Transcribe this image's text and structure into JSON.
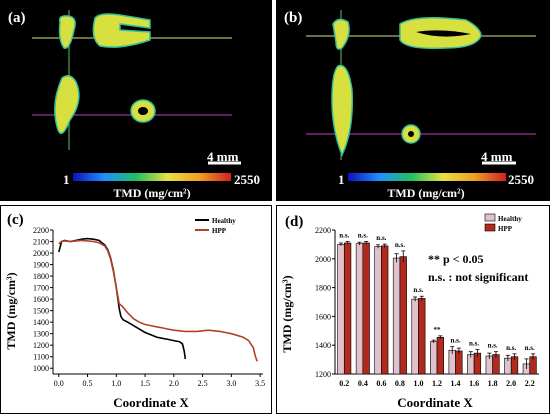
{
  "panels": {
    "a": {
      "label": "(a)",
      "scale_bar": "4 mm",
      "colorbar_min": "1",
      "colorbar_max": "2550",
      "colorbar_title": "TMD (mg/cm²)"
    },
    "b": {
      "label": "(b)",
      "scale_bar": "4 mm",
      "colorbar_min": "1",
      "colorbar_max": "2550",
      "colorbar_title": "TMD (mg/cm²)"
    }
  },
  "colors": {
    "healthy_c": "#000000",
    "hpp_c": "#b5402a",
    "healthy_bar": "#e0c2cc",
    "hpp_bar": "#b02a1e",
    "significant": "#000000"
  },
  "chart_data": [
    {
      "panel_label": "(c)",
      "type": "line",
      "xlabel": "Coordinate X",
      "ylabel": "TMD (mg/cm³)",
      "xlim": [
        -0.1,
        3.55
      ],
      "ylim": [
        950,
        2200
      ],
      "xticks": [
        "0.0",
        "0.5",
        "1.0",
        "1.5",
        "2.0",
        "2.5",
        "3.0",
        "3.5"
      ],
      "yticks": [
        "1000",
        "1100",
        "1200",
        "1300",
        "1400",
        "1500",
        "1600",
        "1700",
        "1800",
        "1900",
        "2000",
        "2100",
        "2200"
      ],
      "legend": "top-right",
      "series": [
        {
          "name": "Healthy",
          "color": "#000000",
          "points": [
            [
              0.0,
              2010
            ],
            [
              0.05,
              2100
            ],
            [
              0.1,
              2110
            ],
            [
              0.2,
              2100
            ],
            [
              0.3,
              2110
            ],
            [
              0.4,
              2120
            ],
            [
              0.5,
              2125
            ],
            [
              0.6,
              2120
            ],
            [
              0.7,
              2110
            ],
            [
              0.8,
              2070
            ],
            [
              0.85,
              2030
            ],
            [
              0.9,
              1960
            ],
            [
              0.95,
              1850
            ],
            [
              1.0,
              1700
            ],
            [
              1.05,
              1520
            ],
            [
              1.08,
              1450
            ],
            [
              1.12,
              1420
            ],
            [
              1.2,
              1400
            ],
            [
              1.3,
              1370
            ],
            [
              1.4,
              1340
            ],
            [
              1.5,
              1310
            ],
            [
              1.6,
              1290
            ],
            [
              1.7,
              1270
            ],
            [
              1.8,
              1260
            ],
            [
              1.9,
              1250
            ],
            [
              2.0,
              1240
            ],
            [
              2.1,
              1230
            ],
            [
              2.15,
              1210
            ],
            [
              2.18,
              1150
            ],
            [
              2.2,
              1080
            ]
          ]
        },
        {
          "name": "HPP",
          "color": "#b5402a",
          "points": [
            [
              0.0,
              2080
            ],
            [
              0.05,
              2100
            ],
            [
              0.1,
              2105
            ],
            [
              0.2,
              2100
            ],
            [
              0.3,
              2105
            ],
            [
              0.4,
              2110
            ],
            [
              0.5,
              2105
            ],
            [
              0.6,
              2100
            ],
            [
              0.7,
              2090
            ],
            [
              0.8,
              2060
            ],
            [
              0.85,
              2020
            ],
            [
              0.9,
              1950
            ],
            [
              0.95,
              1840
            ],
            [
              1.0,
              1700
            ],
            [
              1.05,
              1560
            ],
            [
              1.1,
              1540
            ],
            [
              1.2,
              1480
            ],
            [
              1.3,
              1430
            ],
            [
              1.4,
              1400
            ],
            [
              1.5,
              1380
            ],
            [
              1.6,
              1370
            ],
            [
              1.7,
              1360
            ],
            [
              1.8,
              1350
            ],
            [
              1.9,
              1340
            ],
            [
              2.0,
              1330
            ],
            [
              2.2,
              1320
            ],
            [
              2.4,
              1320
            ],
            [
              2.6,
              1330
            ],
            [
              2.8,
              1320
            ],
            [
              3.0,
              1300
            ],
            [
              3.2,
              1270
            ],
            [
              3.3,
              1240
            ],
            [
              3.38,
              1180
            ],
            [
              3.42,
              1100
            ],
            [
              3.45,
              1060
            ]
          ]
        }
      ]
    },
    {
      "panel_label": "(d)",
      "type": "bar",
      "xlabel": "Coordinate X",
      "ylabel": "TMD (mg/cm³)",
      "ylim": [
        1200,
        2200
      ],
      "yticks": [
        "1200",
        "1400",
        "1600",
        "1800",
        "2000",
        "2200"
      ],
      "categories": [
        "0.2",
        "0.4",
        "0.6",
        "0.8",
        "1.0",
        "1.2",
        "1.4",
        "1.6",
        "1.8",
        "2.0",
        "2.2"
      ],
      "legend": "top-right",
      "series": [
        {
          "name": "Healthy",
          "values": [
            2100,
            2105,
            2085,
            2005,
            1720,
            1425,
            1365,
            1335,
            1325,
            1310,
            1270
          ],
          "errors": [
            10,
            10,
            12,
            30,
            15,
            10,
            25,
            20,
            20,
            20,
            35
          ]
        },
        {
          "name": "HPP",
          "values": [
            2110,
            2110,
            2090,
            2015,
            1725,
            1455,
            1360,
            1345,
            1335,
            1320,
            1320
          ],
          "errors": [
            10,
            10,
            12,
            40,
            15,
            10,
            20,
            25,
            20,
            20,
            20
          ]
        }
      ],
      "annotations": [
        "n.s.",
        "n.s.",
        "n.s.",
        "n.s.",
        "n.s.",
        "**",
        "n.s.",
        "n.s.",
        "n.s.",
        "n.s.",
        "n.s."
      ],
      "notes": {
        "sig": "** p < 0.05",
        "ns": "n.s. : not significant"
      }
    }
  ]
}
